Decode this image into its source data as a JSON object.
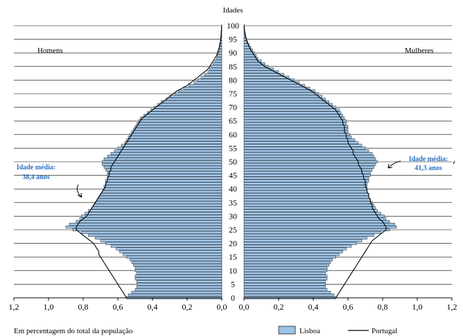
{
  "chart_data": {
    "type": "bar",
    "orientation": "horizontal-population-pyramid",
    "title": "Idades",
    "xlabel": "Em percentagem do total da população",
    "left_group_label": "Homens",
    "right_group_label": "Mulheres",
    "age_ticks": [
      "0",
      "5",
      "10",
      "15",
      "20",
      "25",
      "30",
      "35",
      "40",
      "45",
      "50",
      "55",
      "60",
      "65",
      "70",
      "75",
      "80",
      "85",
      "90",
      "95",
      "100"
    ],
    "x_ticks_left": [
      "1,2",
      "1,0",
      "0,8",
      "0,6",
      "0,4",
      "0,2",
      "0,0"
    ],
    "x_ticks_right": [
      "0,0",
      "0,2",
      "0,4",
      "0,6",
      "0,8",
      "1,0",
      "1,2"
    ],
    "xlim": [
      0,
      1.2
    ],
    "ylim": [
      0,
      100
    ],
    "legend": {
      "placement": "bottom-right",
      "bar_label": "Lisboa",
      "line_label": "Portugal"
    },
    "annotations": {
      "male_mean_label": "Idade média:",
      "male_mean_value": "38,4 anos",
      "female_mean_label": "Idade média:",
      "female_mean_value": "41,3 anos"
    },
    "colors": {
      "bar_fill": "#9dc3e6",
      "bar_stroke": "#1f1f1f",
      "avg_text": "#2f6fc2"
    },
    "series": [
      {
        "name": "Lisboa",
        "group": "Homens",
        "values": [
          0.55,
          0.54,
          0.52,
          0.5,
          0.49,
          0.49,
          0.49,
          0.5,
          0.5,
          0.49,
          0.5,
          0.5,
          0.51,
          0.52,
          0.53,
          0.55,
          0.57,
          0.59,
          0.61,
          0.64,
          0.67,
          0.7,
          0.73,
          0.77,
          0.81,
          0.86,
          0.9,
          0.88,
          0.84,
          0.82,
          0.81,
          0.79,
          0.77,
          0.75,
          0.74,
          0.73,
          0.72,
          0.71,
          0.7,
          0.69,
          0.68,
          0.68,
          0.67,
          0.67,
          0.66,
          0.66,
          0.66,
          0.67,
          0.68,
          0.69,
          0.69,
          0.68,
          0.66,
          0.64,
          0.62,
          0.6,
          0.58,
          0.56,
          0.55,
          0.54,
          0.53,
          0.52,
          0.51,
          0.5,
          0.49,
          0.48,
          0.47,
          0.45,
          0.43,
          0.41,
          0.39,
          0.37,
          0.35,
          0.32,
          0.3,
          0.27,
          0.25,
          0.22,
          0.19,
          0.16,
          0.14,
          0.12,
          0.1,
          0.08,
          0.07,
          0.06,
          0.05,
          0.04,
          0.03,
          0.025,
          0.02,
          0.016,
          0.012,
          0.009,
          0.007,
          0.005,
          0.004,
          0.003,
          0.002,
          0.001,
          0.001
        ]
      },
      {
        "name": "Portugal",
        "group": "Homens",
        "values": [
          0.55,
          0.56,
          0.57,
          0.58,
          0.59,
          0.6,
          0.61,
          0.62,
          0.63,
          0.64,
          0.65,
          0.66,
          0.67,
          0.68,
          0.69,
          0.7,
          0.71,
          0.71,
          0.72,
          0.73,
          0.74,
          0.76,
          0.78,
          0.8,
          0.82,
          0.84,
          0.84,
          0.83,
          0.82,
          0.8,
          0.78,
          0.77,
          0.76,
          0.75,
          0.74,
          0.73,
          0.72,
          0.71,
          0.7,
          0.69,
          0.68,
          0.67,
          0.67,
          0.66,
          0.66,
          0.65,
          0.65,
          0.64,
          0.64,
          0.63,
          0.62,
          0.61,
          0.6,
          0.59,
          0.58,
          0.57,
          0.56,
          0.55,
          0.54,
          0.53,
          0.52,
          0.51,
          0.5,
          0.49,
          0.48,
          0.47,
          0.46,
          0.44,
          0.42,
          0.4,
          0.38,
          0.36,
          0.34,
          0.32,
          0.3,
          0.28,
          0.26,
          0.23,
          0.2,
          0.18,
          0.16,
          0.14,
          0.12,
          0.1,
          0.08,
          0.07,
          0.06,
          0.05,
          0.04,
          0.03,
          0.025,
          0.02,
          0.015,
          0.012,
          0.009,
          0.007,
          0.005,
          0.004,
          0.003,
          0.002,
          0.001
        ]
      },
      {
        "name": "Lisboa",
        "group": "Mulheres",
        "values": [
          0.53,
          0.52,
          0.5,
          0.48,
          0.47,
          0.47,
          0.47,
          0.48,
          0.48,
          0.47,
          0.48,
          0.48,
          0.49,
          0.5,
          0.51,
          0.53,
          0.55,
          0.57,
          0.59,
          0.62,
          0.65,
          0.68,
          0.71,
          0.75,
          0.79,
          0.84,
          0.88,
          0.87,
          0.84,
          0.82,
          0.81,
          0.79,
          0.77,
          0.76,
          0.75,
          0.74,
          0.73,
          0.72,
          0.72,
          0.71,
          0.71,
          0.71,
          0.71,
          0.72,
          0.72,
          0.73,
          0.73,
          0.74,
          0.75,
          0.76,
          0.77,
          0.76,
          0.75,
          0.74,
          0.72,
          0.7,
          0.68,
          0.66,
          0.64,
          0.62,
          0.61,
          0.6,
          0.6,
          0.6,
          0.59,
          0.59,
          0.58,
          0.57,
          0.56,
          0.55,
          0.53,
          0.51,
          0.49,
          0.47,
          0.45,
          0.43,
          0.41,
          0.38,
          0.35,
          0.32,
          0.29,
          0.26,
          0.23,
          0.2,
          0.17,
          0.14,
          0.12,
          0.1,
          0.08,
          0.07,
          0.06,
          0.05,
          0.04,
          0.03,
          0.022,
          0.016,
          0.011,
          0.008,
          0.005,
          0.003,
          0.002
        ]
      },
      {
        "name": "Portugal",
        "group": "Mulheres",
        "values": [
          0.53,
          0.54,
          0.55,
          0.56,
          0.57,
          0.58,
          0.59,
          0.6,
          0.61,
          0.62,
          0.63,
          0.64,
          0.65,
          0.66,
          0.67,
          0.68,
          0.69,
          0.7,
          0.71,
          0.72,
          0.73,
          0.74,
          0.76,
          0.78,
          0.8,
          0.82,
          0.82,
          0.81,
          0.8,
          0.78,
          0.77,
          0.76,
          0.75,
          0.74,
          0.74,
          0.73,
          0.73,
          0.72,
          0.72,
          0.71,
          0.71,
          0.7,
          0.7,
          0.7,
          0.69,
          0.69,
          0.68,
          0.68,
          0.67,
          0.66,
          0.66,
          0.65,
          0.64,
          0.63,
          0.63,
          0.62,
          0.61,
          0.6,
          0.6,
          0.59,
          0.59,
          0.58,
          0.58,
          0.58,
          0.57,
          0.57,
          0.56,
          0.55,
          0.54,
          0.53,
          0.51,
          0.49,
          0.47,
          0.45,
          0.43,
          0.41,
          0.39,
          0.36,
          0.33,
          0.3,
          0.27,
          0.24,
          0.21,
          0.18,
          0.15,
          0.12,
          0.1,
          0.08,
          0.07,
          0.06,
          0.05,
          0.04,
          0.032,
          0.025,
          0.018,
          0.013,
          0.009,
          0.006,
          0.004,
          0.002,
          0.001
        ]
      }
    ]
  }
}
